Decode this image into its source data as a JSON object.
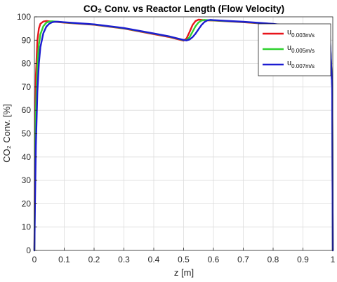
{
  "chart_data": {
    "type": "line",
    "title": "CO₂ Conv. vs Reactor Length (Flow Velocity)",
    "xlabel": "z [m]",
    "ylabel": "CO₂ Conv. [%]",
    "xlim": [
      0,
      1
    ],
    "ylim": [
      0,
      100
    ],
    "xticks": [
      "0",
      "0.1",
      "0.2",
      "0.3",
      "0.4",
      "0.5",
      "0.6",
      "0.7",
      "0.8",
      "0.9",
      "1"
    ],
    "yticks": [
      "0",
      "10",
      "20",
      "30",
      "40",
      "50",
      "60",
      "70",
      "80",
      "90",
      "100"
    ],
    "grid": true,
    "legend_position": "top-right",
    "series": [
      {
        "name": "u",
        "name_sub": "0.003m/s",
        "color": "#e8141b",
        "x": [
          0,
          0.002,
          0.005,
          0.01,
          0.015,
          0.02,
          0.03,
          0.04,
          0.05,
          0.06,
          0.1,
          0.2,
          0.3,
          0.4,
          0.45,
          0.5,
          0.51,
          0.52,
          0.53,
          0.54,
          0.55,
          0.56,
          0.58,
          0.6,
          0.7,
          0.8,
          0.9,
          0.95,
          0.99,
          0.998,
          1
        ],
        "y": [
          0,
          45,
          75,
          90,
          95,
          97,
          98,
          98.2,
          98.1,
          98,
          97.5,
          96.6,
          95,
          92.6,
          91.4,
          89.8,
          90.8,
          93.5,
          96.5,
          98.2,
          98.8,
          98.7,
          98.5,
          98.4,
          97.7,
          96.8,
          95,
          93.5,
          91.6,
          70,
          0
        ]
      },
      {
        "name": "u",
        "name_sub": "0.005m/s",
        "color": "#2fd12f",
        "x": [
          0,
          0.002,
          0.005,
          0.01,
          0.015,
          0.02,
          0.03,
          0.04,
          0.05,
          0.06,
          0.07,
          0.1,
          0.2,
          0.3,
          0.4,
          0.45,
          0.5,
          0.51,
          0.52,
          0.53,
          0.54,
          0.55,
          0.56,
          0.57,
          0.58,
          0.6,
          0.7,
          0.8,
          0.9,
          0.95,
          0.99,
          0.998,
          1
        ],
        "y": [
          0,
          30,
          60,
          80,
          88,
          92.5,
          96,
          97.5,
          98,
          98.1,
          98,
          97.6,
          96.7,
          95.1,
          92.8,
          91.6,
          90,
          90.1,
          91.3,
          93.6,
          96,
          97.6,
          98.4,
          98.7,
          98.6,
          98.5,
          97.8,
          96.9,
          95.2,
          94,
          92.3,
          70,
          0
        ]
      },
      {
        "name": "u",
        "name_sub": "0.007m/s",
        "color": "#1c1cd1",
        "x": [
          0,
          0.002,
          0.005,
          0.01,
          0.015,
          0.02,
          0.03,
          0.04,
          0.05,
          0.06,
          0.07,
          0.08,
          0.1,
          0.2,
          0.3,
          0.4,
          0.45,
          0.5,
          0.51,
          0.52,
          0.53,
          0.54,
          0.55,
          0.56,
          0.57,
          0.58,
          0.59,
          0.6,
          0.7,
          0.8,
          0.9,
          0.95,
          0.99,
          0.998,
          1
        ],
        "y": [
          0,
          20,
          45,
          68,
          80,
          87,
          93,
          95.8,
          97.1,
          97.7,
          97.9,
          97.9,
          97.7,
          96.8,
          95.2,
          92.9,
          91.7,
          90.1,
          89.9,
          90.3,
          91.3,
          92.8,
          94.7,
          96.5,
          97.8,
          98.5,
          98.7,
          98.6,
          97.9,
          97,
          95.4,
          94.4,
          92.9,
          70,
          0
        ]
      }
    ]
  }
}
